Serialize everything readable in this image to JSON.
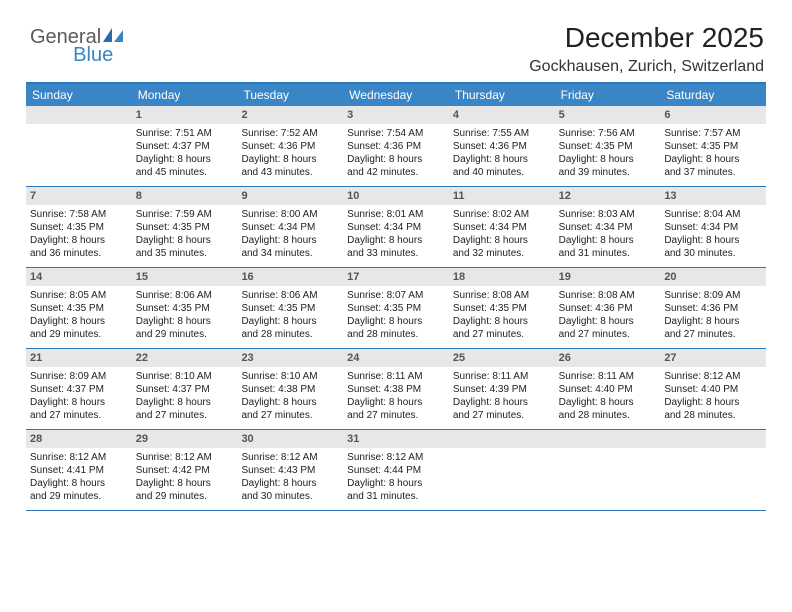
{
  "logo": {
    "text1": "General",
    "text2": "Blue",
    "color_general": "#5b5b5b",
    "color_blue": "#3a85c6"
  },
  "title": "December 2025",
  "subtitle": "Gockhausen, Zurich, Switzerland",
  "colors": {
    "header_bg": "#3a85c6",
    "header_text": "#ffffff",
    "divider": "#2a79bc",
    "daynum_bg": "#e7e7e7",
    "daynum_text": "#555555",
    "body_text": "#222222"
  },
  "day_headers": [
    "Sunday",
    "Monday",
    "Tuesday",
    "Wednesday",
    "Thursday",
    "Friday",
    "Saturday"
  ],
  "weeks": [
    [
      {
        "n": "",
        "sunrise": "",
        "sunset": "",
        "daylight1": "",
        "daylight2": ""
      },
      {
        "n": "1",
        "sunrise": "Sunrise: 7:51 AM",
        "sunset": "Sunset: 4:37 PM",
        "daylight1": "Daylight: 8 hours",
        "daylight2": "and 45 minutes."
      },
      {
        "n": "2",
        "sunrise": "Sunrise: 7:52 AM",
        "sunset": "Sunset: 4:36 PM",
        "daylight1": "Daylight: 8 hours",
        "daylight2": "and 43 minutes."
      },
      {
        "n": "3",
        "sunrise": "Sunrise: 7:54 AM",
        "sunset": "Sunset: 4:36 PM",
        "daylight1": "Daylight: 8 hours",
        "daylight2": "and 42 minutes."
      },
      {
        "n": "4",
        "sunrise": "Sunrise: 7:55 AM",
        "sunset": "Sunset: 4:36 PM",
        "daylight1": "Daylight: 8 hours",
        "daylight2": "and 40 minutes."
      },
      {
        "n": "5",
        "sunrise": "Sunrise: 7:56 AM",
        "sunset": "Sunset: 4:35 PM",
        "daylight1": "Daylight: 8 hours",
        "daylight2": "and 39 minutes."
      },
      {
        "n": "6",
        "sunrise": "Sunrise: 7:57 AM",
        "sunset": "Sunset: 4:35 PM",
        "daylight1": "Daylight: 8 hours",
        "daylight2": "and 37 minutes."
      }
    ],
    [
      {
        "n": "7",
        "sunrise": "Sunrise: 7:58 AM",
        "sunset": "Sunset: 4:35 PM",
        "daylight1": "Daylight: 8 hours",
        "daylight2": "and 36 minutes."
      },
      {
        "n": "8",
        "sunrise": "Sunrise: 7:59 AM",
        "sunset": "Sunset: 4:35 PM",
        "daylight1": "Daylight: 8 hours",
        "daylight2": "and 35 minutes."
      },
      {
        "n": "9",
        "sunrise": "Sunrise: 8:00 AM",
        "sunset": "Sunset: 4:34 PM",
        "daylight1": "Daylight: 8 hours",
        "daylight2": "and 34 minutes."
      },
      {
        "n": "10",
        "sunrise": "Sunrise: 8:01 AM",
        "sunset": "Sunset: 4:34 PM",
        "daylight1": "Daylight: 8 hours",
        "daylight2": "and 33 minutes."
      },
      {
        "n": "11",
        "sunrise": "Sunrise: 8:02 AM",
        "sunset": "Sunset: 4:34 PM",
        "daylight1": "Daylight: 8 hours",
        "daylight2": "and 32 minutes."
      },
      {
        "n": "12",
        "sunrise": "Sunrise: 8:03 AM",
        "sunset": "Sunset: 4:34 PM",
        "daylight1": "Daylight: 8 hours",
        "daylight2": "and 31 minutes."
      },
      {
        "n": "13",
        "sunrise": "Sunrise: 8:04 AM",
        "sunset": "Sunset: 4:34 PM",
        "daylight1": "Daylight: 8 hours",
        "daylight2": "and 30 minutes."
      }
    ],
    [
      {
        "n": "14",
        "sunrise": "Sunrise: 8:05 AM",
        "sunset": "Sunset: 4:35 PM",
        "daylight1": "Daylight: 8 hours",
        "daylight2": "and 29 minutes."
      },
      {
        "n": "15",
        "sunrise": "Sunrise: 8:06 AM",
        "sunset": "Sunset: 4:35 PM",
        "daylight1": "Daylight: 8 hours",
        "daylight2": "and 29 minutes."
      },
      {
        "n": "16",
        "sunrise": "Sunrise: 8:06 AM",
        "sunset": "Sunset: 4:35 PM",
        "daylight1": "Daylight: 8 hours",
        "daylight2": "and 28 minutes."
      },
      {
        "n": "17",
        "sunrise": "Sunrise: 8:07 AM",
        "sunset": "Sunset: 4:35 PM",
        "daylight1": "Daylight: 8 hours",
        "daylight2": "and 28 minutes."
      },
      {
        "n": "18",
        "sunrise": "Sunrise: 8:08 AM",
        "sunset": "Sunset: 4:35 PM",
        "daylight1": "Daylight: 8 hours",
        "daylight2": "and 27 minutes."
      },
      {
        "n": "19",
        "sunrise": "Sunrise: 8:08 AM",
        "sunset": "Sunset: 4:36 PM",
        "daylight1": "Daylight: 8 hours",
        "daylight2": "and 27 minutes."
      },
      {
        "n": "20",
        "sunrise": "Sunrise: 8:09 AM",
        "sunset": "Sunset: 4:36 PM",
        "daylight1": "Daylight: 8 hours",
        "daylight2": "and 27 minutes."
      }
    ],
    [
      {
        "n": "21",
        "sunrise": "Sunrise: 8:09 AM",
        "sunset": "Sunset: 4:37 PM",
        "daylight1": "Daylight: 8 hours",
        "daylight2": "and 27 minutes."
      },
      {
        "n": "22",
        "sunrise": "Sunrise: 8:10 AM",
        "sunset": "Sunset: 4:37 PM",
        "daylight1": "Daylight: 8 hours",
        "daylight2": "and 27 minutes."
      },
      {
        "n": "23",
        "sunrise": "Sunrise: 8:10 AM",
        "sunset": "Sunset: 4:38 PM",
        "daylight1": "Daylight: 8 hours",
        "daylight2": "and 27 minutes."
      },
      {
        "n": "24",
        "sunrise": "Sunrise: 8:11 AM",
        "sunset": "Sunset: 4:38 PM",
        "daylight1": "Daylight: 8 hours",
        "daylight2": "and 27 minutes."
      },
      {
        "n": "25",
        "sunrise": "Sunrise: 8:11 AM",
        "sunset": "Sunset: 4:39 PM",
        "daylight1": "Daylight: 8 hours",
        "daylight2": "and 27 minutes."
      },
      {
        "n": "26",
        "sunrise": "Sunrise: 8:11 AM",
        "sunset": "Sunset: 4:40 PM",
        "daylight1": "Daylight: 8 hours",
        "daylight2": "and 28 minutes."
      },
      {
        "n": "27",
        "sunrise": "Sunrise: 8:12 AM",
        "sunset": "Sunset: 4:40 PM",
        "daylight1": "Daylight: 8 hours",
        "daylight2": "and 28 minutes."
      }
    ],
    [
      {
        "n": "28",
        "sunrise": "Sunrise: 8:12 AM",
        "sunset": "Sunset: 4:41 PM",
        "daylight1": "Daylight: 8 hours",
        "daylight2": "and 29 minutes."
      },
      {
        "n": "29",
        "sunrise": "Sunrise: 8:12 AM",
        "sunset": "Sunset: 4:42 PM",
        "daylight1": "Daylight: 8 hours",
        "daylight2": "and 29 minutes."
      },
      {
        "n": "30",
        "sunrise": "Sunrise: 8:12 AM",
        "sunset": "Sunset: 4:43 PM",
        "daylight1": "Daylight: 8 hours",
        "daylight2": "and 30 minutes."
      },
      {
        "n": "31",
        "sunrise": "Sunrise: 8:12 AM",
        "sunset": "Sunset: 4:44 PM",
        "daylight1": "Daylight: 8 hours",
        "daylight2": "and 31 minutes."
      },
      {
        "n": "",
        "sunrise": "",
        "sunset": "",
        "daylight1": "",
        "daylight2": ""
      },
      {
        "n": "",
        "sunrise": "",
        "sunset": "",
        "daylight1": "",
        "daylight2": ""
      },
      {
        "n": "",
        "sunrise": "",
        "sunset": "",
        "daylight1": "",
        "daylight2": ""
      }
    ]
  ]
}
